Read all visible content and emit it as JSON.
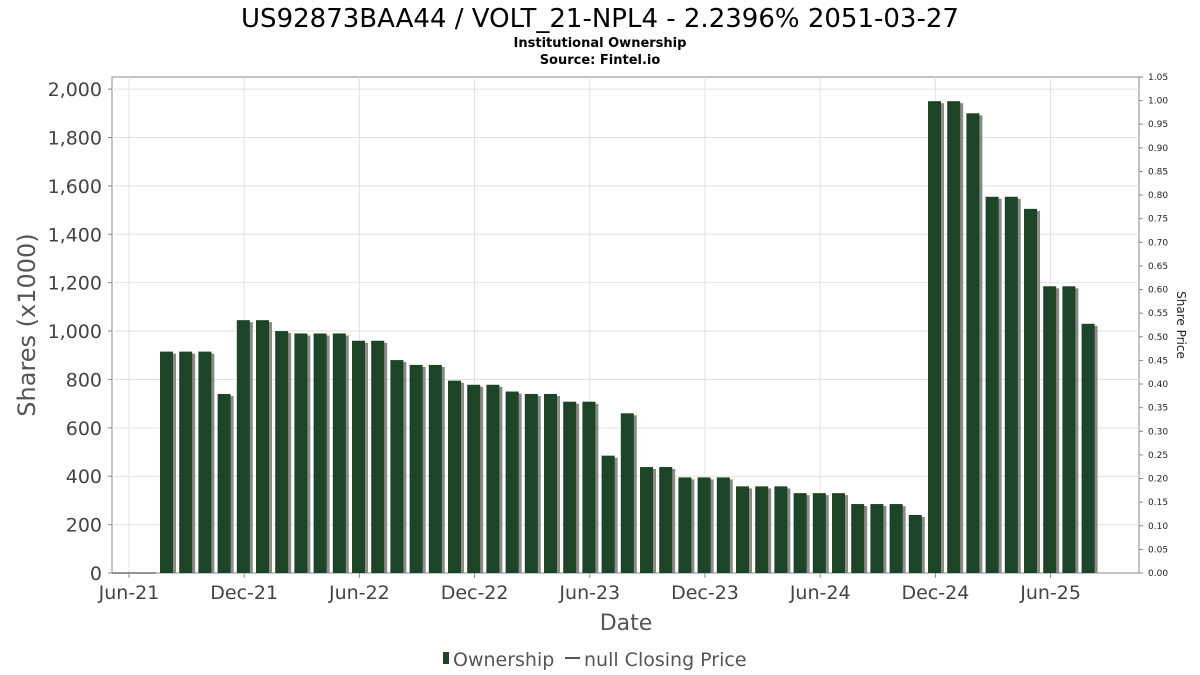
{
  "chart_data": {
    "type": "bar",
    "title": "US92873BAA44 / VOLT_21-NPL4 - 2.2396% 2051-03-27",
    "subtitle": "Institutional Ownership",
    "source": "Source: Fintel.io",
    "xlabel": "Date",
    "ylabel": "Shares (x1000)",
    "y2label": "Share Price",
    "ylim": [
      0,
      2050
    ],
    "y2lim": [
      0,
      1.05
    ],
    "grid": true,
    "yticks": [
      "0",
      "200",
      "400",
      "600",
      "800",
      "1,000",
      "1,200",
      "1,400",
      "1,600",
      "1,800",
      "2,000"
    ],
    "y2ticks": [
      "0.00",
      "0.05",
      "0.10",
      "0.15",
      "0.20",
      "0.25",
      "0.30",
      "0.35",
      "0.40",
      "0.45",
      "0.50",
      "0.55",
      "0.60",
      "0.65",
      "0.70",
      "0.75",
      "0.80",
      "0.85",
      "0.90",
      "0.95",
      "1.00",
      "1.05"
    ],
    "xticks": [
      "Jun-21",
      "Dec-21",
      "Jun-22",
      "Dec-22",
      "Jun-23",
      "Dec-23",
      "Jun-24",
      "Dec-24",
      "Jun-25"
    ],
    "legend": [
      {
        "label": "Ownership",
        "color": "#1c4426"
      },
      {
        "label": "null Closing Price",
        "color": "#555555"
      }
    ],
    "legend_position": "bottom",
    "series": [
      {
        "name": "Ownership",
        "color": "#1c4426",
        "values": [
          915,
          915,
          915,
          740,
          1045,
          1045,
          1000,
          990,
          990,
          990,
          960,
          960,
          880,
          860,
          860,
          795,
          778,
          778,
          750,
          740,
          740,
          708,
          708,
          485,
          660,
          438,
          438,
          395,
          395,
          395,
          358,
          358,
          358,
          330,
          330,
          330,
          285,
          285,
          285,
          240,
          1950,
          1950,
          1900,
          1555,
          1555,
          1505,
          1185,
          1185,
          1030
        ]
      }
    ]
  }
}
